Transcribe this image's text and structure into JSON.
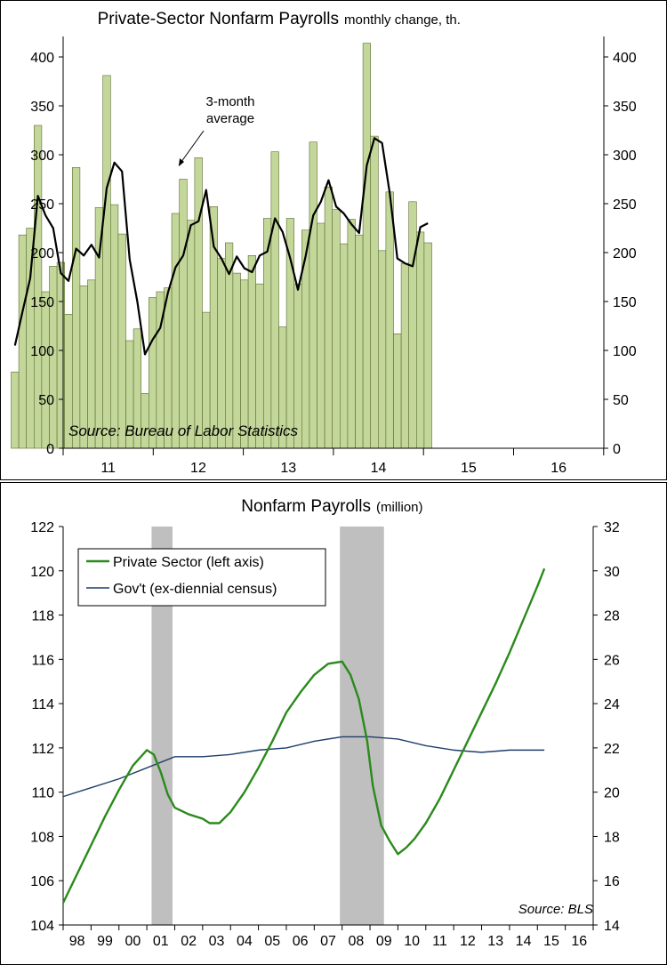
{
  "chart_data": [
    {
      "type": "bar",
      "title": "Private-Sector Nonfarm Payrolls",
      "subtitle": "monthly change, th.",
      "ylim": [
        0,
        400
      ],
      "yticks": [
        0,
        50,
        100,
        150,
        200,
        250,
        300,
        350,
        400
      ],
      "xticks": [
        "11",
        "12",
        "13",
        "14",
        "15",
        "16"
      ],
      "x_start": "2010-07",
      "grid": false,
      "series": [
        {
          "name": "",
          "type": "bar",
          "color": "#c4d79b",
          "values": [
            78,
            218,
            225,
            330,
            160,
            186,
            190,
            137,
            287,
            166,
            172,
            246,
            381,
            249,
            219,
            110,
            122,
            56,
            154,
            160,
            164,
            240,
            275,
            233,
            297,
            139,
            247,
            194,
            210,
            179,
            172,
            197,
            168,
            235,
            303,
            124,
            235,
            168,
            223,
            313,
            230,
            267,
            244,
            209,
            234,
            218,
            414,
            319,
            202,
            262,
            117,
            189,
            252,
            221,
            210
          ]
        },
        {
          "name": "3-month average",
          "type": "line",
          "color": "#000000",
          "values": [
            105,
            140,
            174,
            258,
            238,
            225,
            179,
            171,
            204,
            197,
            208,
            195,
            266,
            292,
            283,
            193,
            150,
            96,
            111,
            123,
            159,
            185,
            197,
            228,
            232,
            264,
            206,
            194,
            178,
            196,
            184,
            180,
            197,
            201,
            235,
            221,
            194,
            162,
            196,
            238,
            252,
            274,
            247,
            240,
            229,
            220,
            289,
            317,
            312,
            261,
            194,
            189,
            186,
            226,
            230
          ]
        }
      ],
      "annotations": [
        "3-month average",
        "Source: Bureau of Labor Statistics"
      ]
    },
    {
      "type": "line",
      "title": "Nonfarm Payrolls",
      "subtitle": "(million)",
      "ylim_left": [
        104,
        122
      ],
      "yticks_left": [
        104,
        106,
        108,
        110,
        112,
        114,
        116,
        118,
        120,
        122
      ],
      "ylim_right": [
        14,
        32
      ],
      "yticks_right": [
        14,
        16,
        18,
        20,
        22,
        24,
        26,
        28,
        30,
        32
      ],
      "xticks": [
        "98",
        "99",
        "00",
        "01",
        "02",
        "03",
        "04",
        "05",
        "06",
        "07",
        "08",
        "09",
        "10",
        "11",
        "12",
        "13",
        "14",
        "15",
        "16"
      ],
      "x_start": 1998.0,
      "recessions": [
        [
          2001.17,
          2001.92
        ],
        [
          2007.92,
          2009.5
        ]
      ],
      "legend": "top-left",
      "series": [
        {
          "name": "Private Sector (left axis)",
          "axis": "left",
          "color": "#2b8a1c",
          "points": [
            [
              1998.0,
              105.0
            ],
            [
              1998.5,
              106.3
            ],
            [
              1999.0,
              107.6
            ],
            [
              1999.5,
              108.9
            ],
            [
              2000.0,
              110.1
            ],
            [
              2000.5,
              111.2
            ],
            [
              2001.0,
              111.9
            ],
            [
              2001.25,
              111.7
            ],
            [
              2001.5,
              110.9
            ],
            [
              2001.75,
              109.9
            ],
            [
              2002.0,
              109.3
            ],
            [
              2002.5,
              109.0
            ],
            [
              2003.0,
              108.8
            ],
            [
              2003.25,
              108.6
            ],
            [
              2003.6,
              108.6
            ],
            [
              2004.0,
              109.1
            ],
            [
              2004.5,
              110.0
            ],
            [
              2005.0,
              111.1
            ],
            [
              2005.5,
              112.3
            ],
            [
              2006.0,
              113.6
            ],
            [
              2006.5,
              114.5
            ],
            [
              2007.0,
              115.3
            ],
            [
              2007.5,
              115.8
            ],
            [
              2008.0,
              115.9
            ],
            [
              2008.3,
              115.3
            ],
            [
              2008.6,
              114.2
            ],
            [
              2008.9,
              112.3
            ],
            [
              2009.1,
              110.3
            ],
            [
              2009.4,
              108.5
            ],
            [
              2009.7,
              107.8
            ],
            [
              2010.0,
              107.2
            ],
            [
              2010.3,
              107.5
            ],
            [
              2010.6,
              107.9
            ],
            [
              2011.0,
              108.6
            ],
            [
              2011.5,
              109.7
            ],
            [
              2012.0,
              111.0
            ],
            [
              2012.5,
              112.3
            ],
            [
              2013.0,
              113.6
            ],
            [
              2013.5,
              114.9
            ],
            [
              2014.0,
              116.3
            ],
            [
              2014.5,
              117.8
            ],
            [
              2015.0,
              119.3
            ],
            [
              2015.25,
              120.1
            ]
          ]
        },
        {
          "name": "Gov't (ex-diennial census)",
          "axis": "right",
          "color": "#1f3d6b",
          "points": [
            [
              1998.0,
              19.8
            ],
            [
              1999.0,
              20.2
            ],
            [
              2000.0,
              20.6
            ],
            [
              2001.0,
              21.1
            ],
            [
              2002.0,
              21.6
            ],
            [
              2003.0,
              21.6
            ],
            [
              2004.0,
              21.7
            ],
            [
              2005.0,
              21.9
            ],
            [
              2006.0,
              22.0
            ],
            [
              2007.0,
              22.3
            ],
            [
              2008.0,
              22.5
            ],
            [
              2009.0,
              22.5
            ],
            [
              2010.0,
              22.4
            ],
            [
              2011.0,
              22.1
            ],
            [
              2012.0,
              21.9
            ],
            [
              2013.0,
              21.8
            ],
            [
              2014.0,
              21.9
            ],
            [
              2015.25,
              21.9
            ]
          ]
        }
      ],
      "annotations": [
        "Source: BLS"
      ]
    }
  ]
}
